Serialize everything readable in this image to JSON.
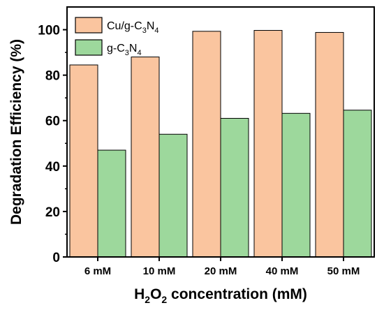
{
  "chart_data": {
    "type": "bar",
    "categories": [
      "6 mM",
      "10 mM",
      "20 mM",
      "40 mM",
      "50 mM"
    ],
    "series": [
      {
        "name": "Cu/g-C3N4",
        "values": [
          84.5,
          88,
          99.3,
          99.7,
          98.8
        ],
        "color": "#FAC59F"
      },
      {
        "name": "g-C3N4",
        "values": [
          47,
          54,
          61,
          63.2,
          64.6
        ],
        "color": "#9DD89C"
      }
    ],
    "ylim": [
      0,
      110
    ],
    "yticks": [
      0,
      20,
      40,
      60,
      80,
      100
    ],
    "grid": false,
    "legend_position": "top-left"
  },
  "axis": {
    "ylabel": "Degradation Efficiency (%)",
    "xlabel": {
      "prefix": "H",
      "sub1": "2",
      "mid": "O",
      "sub2": "2",
      "suffix": " concentration (mM)"
    }
  },
  "legend": {
    "item1": {
      "a": "Cu/g-C",
      "sub1": "3",
      "b": "N",
      "sub2": "4"
    },
    "item2": {
      "a": "g-C",
      "sub1": "3",
      "b": "N",
      "sub2": "4"
    }
  }
}
